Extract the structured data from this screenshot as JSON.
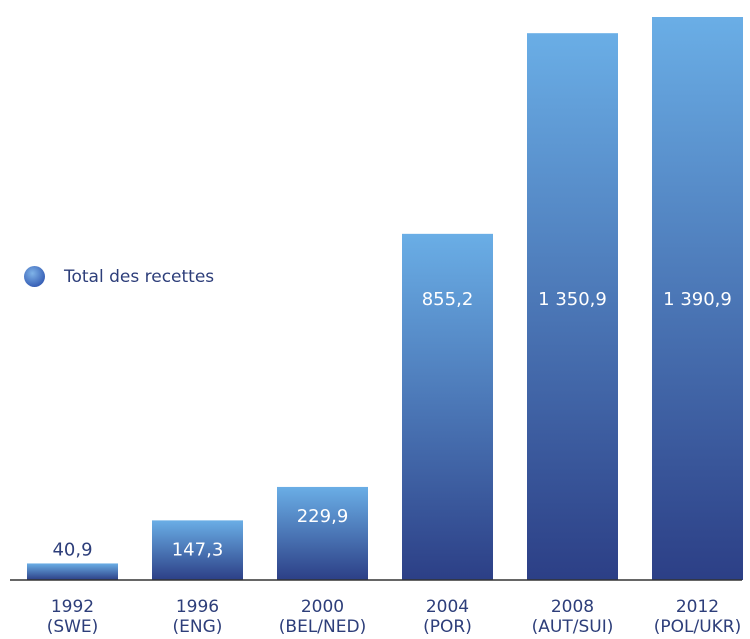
{
  "chart_data": {
    "type": "bar",
    "categories": [
      [
        "1992",
        "(SWE)"
      ],
      [
        "1996",
        "(ENG)"
      ],
      [
        "2000",
        "(BEL/NED)"
      ],
      [
        "2004",
        "(POR)"
      ],
      [
        "2008",
        "(AUT/SUI)"
      ],
      [
        "2012",
        "(POL/UKR)"
      ]
    ],
    "values": [
      40.9,
      147.3,
      229.9,
      855.2,
      1350.9,
      1390.9
    ],
    "value_labels": [
      "40,9",
      "147,3",
      "229,9",
      "855,2",
      "1 350,9",
      "1 390,9"
    ],
    "series": [
      {
        "name": "Total des recettes",
        "values": [
          40.9,
          147.3,
          229.9,
          855.2,
          1350.9,
          1390.9
        ]
      }
    ],
    "ylim": [
      0,
      1390.9
    ],
    "grid": false,
    "legend_position": "left",
    "colors": {
      "bar_top": "#6aaee6",
      "bar_bottom": "#2c3f86",
      "text": "#2d3e7a",
      "axis": "#333333"
    }
  }
}
